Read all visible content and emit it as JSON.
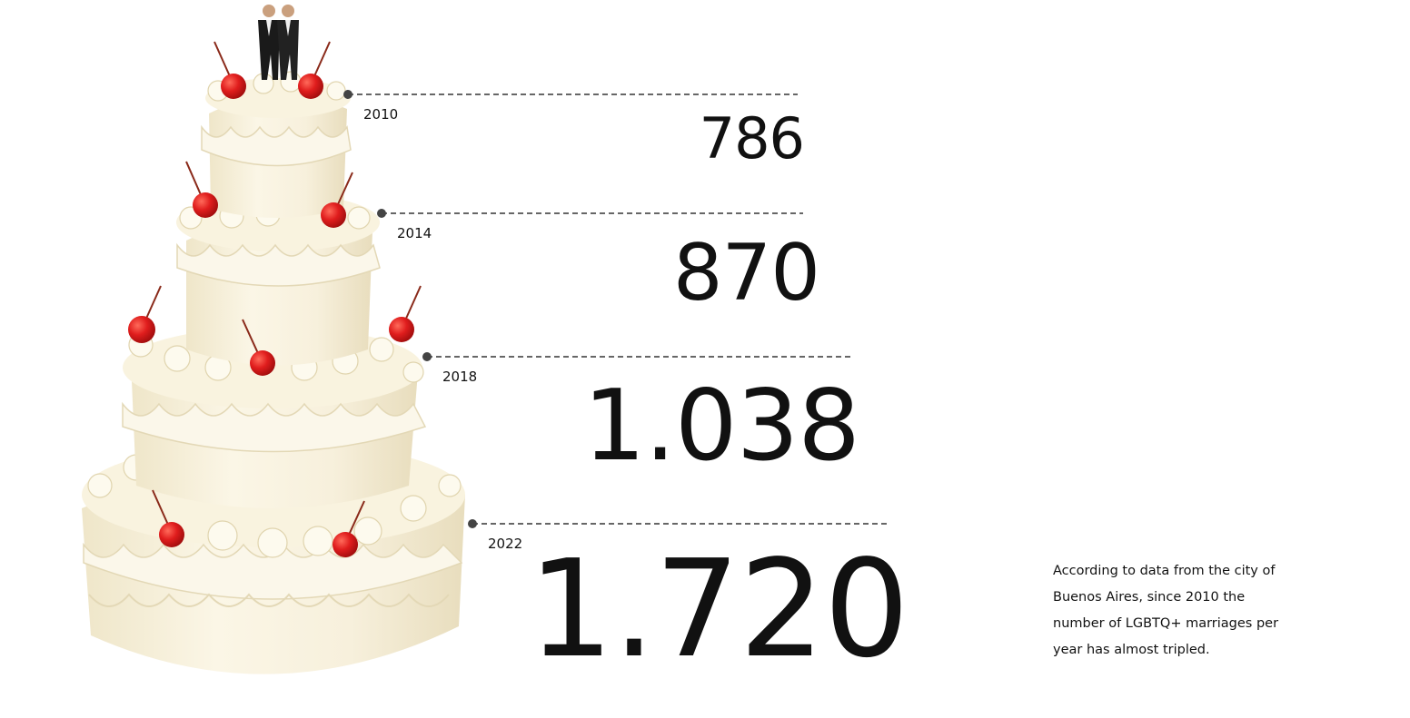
{
  "chart_data": {
    "type": "bar",
    "categories": [
      "2010",
      "2014",
      "2018",
      "2022"
    ],
    "values": [
      786,
      870,
      1038,
      1720
    ],
    "value_labels": [
      "786",
      "870",
      "1.038",
      "1.720"
    ],
    "title": "",
    "xlabel": "",
    "ylabel": "",
    "note": "According to data from the city of Buenos Aires, since 2010 the number of LGBTQ+ marriages per year has almost tripled."
  },
  "illustration": "wedding-cake-with-two-groom-figurines",
  "colors": {
    "text": "#111111",
    "leader_line": "#333333",
    "frosting": "#f6efd8",
    "frosting_shadow": "#e6dcbc",
    "cherry": "#e01d1d",
    "suit": "#1a1a1a"
  }
}
